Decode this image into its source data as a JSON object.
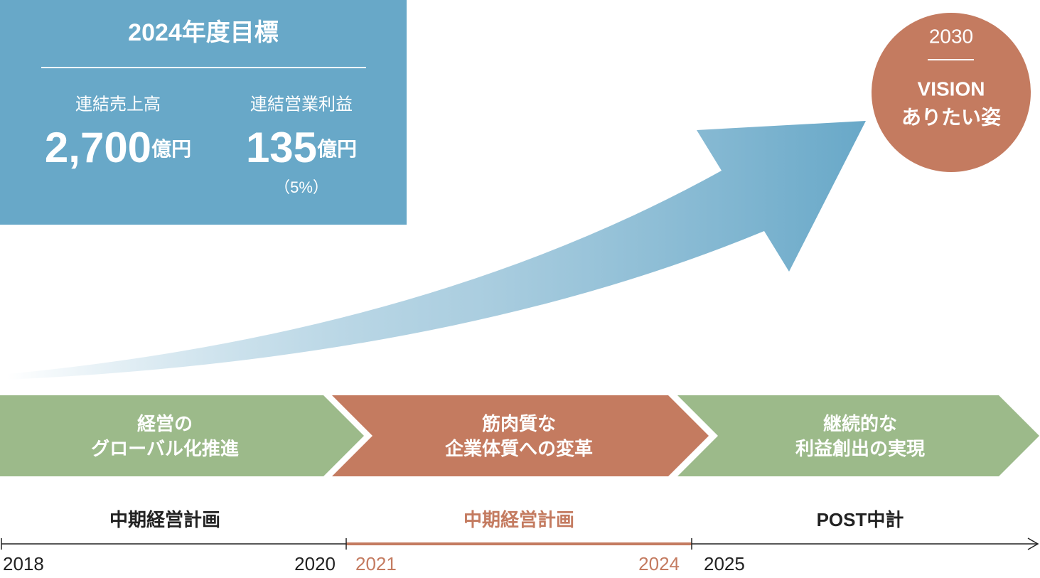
{
  "target": {
    "title": "2024年度目標",
    "items": [
      {
        "label": "連結売上高",
        "value": "2,700",
        "unit": "億円"
      },
      {
        "label": "連結営業利益",
        "value": "135",
        "unit": "億円",
        "note": "（5%）"
      }
    ]
  },
  "vision": {
    "year": "2030",
    "title": "VISION",
    "subtitle": "ありたい姿"
  },
  "phases": [
    {
      "lines": [
        "経営の",
        "グローバル化推進"
      ]
    },
    {
      "lines": [
        "筋肉質な",
        "企業体質への変革"
      ]
    },
    {
      "lines": [
        "継続的な",
        "利益創出の実現"
      ]
    }
  ],
  "timeline": {
    "plans": [
      "中期経営計画",
      "中期経営計画",
      "POST中計"
    ],
    "years": [
      "2018",
      "2020",
      "2021",
      "2024",
      "2025"
    ]
  }
}
